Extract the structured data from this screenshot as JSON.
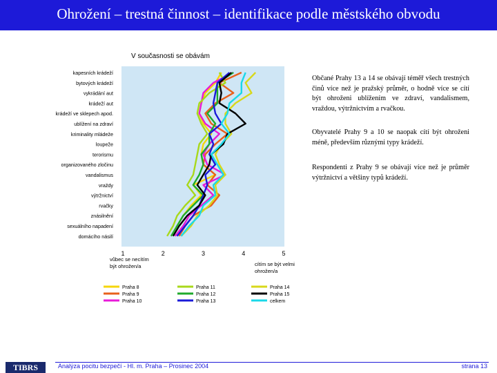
{
  "header": {
    "title": "Ohrožení – trestná činnost – identifikace podle městského obvodu"
  },
  "chart_data": {
    "type": "line",
    "orientation": "horizontal-profile",
    "title": "V současnosti se obávám",
    "categories": [
      "kapesních krádeží",
      "bytových krádeží",
      "vykrádání aut",
      "krádeží aut",
      "krádeží ve sklepech apod.",
      "ublížení na zdraví",
      "kriminality mládeže",
      "loupeže",
      "terorismu",
      "organizovaného zločinu",
      "vandalismus",
      "vraždy",
      "výtržnictví",
      "rvačky",
      "znásilnění",
      "sexuálního napadení",
      "domácího násilí"
    ],
    "x_ticks": [
      "1",
      "2",
      "3",
      "4",
      "5"
    ],
    "xlim": [
      1,
      5
    ],
    "x_min_label": "vůbec se necítím být ohrožen/a",
    "x_max_label": "cítím se být velmi ohrožen/a",
    "grid": false,
    "legend_position": "bottom",
    "series": [
      {
        "name": "Praha 8",
        "color": "#f5d60a",
        "values": [
          3.45,
          3.3,
          3.05,
          2.95,
          2.9,
          3.0,
          3.2,
          3.0,
          2.95,
          3.0,
          3.3,
          2.75,
          2.95,
          2.7,
          2.5,
          2.35,
          2.2
        ]
      },
      {
        "name": "Praha 9",
        "color": "#e8601c",
        "values": [
          3.95,
          3.4,
          3.75,
          3.3,
          3.05,
          3.2,
          3.6,
          3.3,
          3.05,
          3.0,
          3.3,
          3.1,
          3.4,
          3.2,
          2.75,
          2.55,
          2.4
        ]
      },
      {
        "name": "Praha 10",
        "color": "#e81ad8",
        "values": [
          3.75,
          3.25,
          3.0,
          2.95,
          2.9,
          3.05,
          3.4,
          3.15,
          3.0,
          3.1,
          3.55,
          3.0,
          3.25,
          2.95,
          2.65,
          2.5,
          2.3
        ]
      },
      {
        "name": "Praha 11",
        "color": "#a8d81a",
        "values": [
          3.4,
          3.55,
          3.15,
          2.9,
          2.85,
          2.95,
          3.1,
          2.9,
          2.85,
          2.8,
          2.75,
          2.6,
          2.8,
          2.55,
          2.35,
          2.25,
          2.1
        ]
      },
      {
        "name": "Praha 12",
        "color": "#1faa2c",
        "values": [
          3.75,
          3.35,
          3.35,
          3.35,
          3.1,
          3.3,
          3.15,
          3.15,
          2.95,
          3.0,
          2.9,
          2.75,
          3.0,
          2.75,
          2.5,
          2.35,
          2.2
        ]
      },
      {
        "name": "Praha 13",
        "color": "#1a1ad8",
        "values": [
          3.65,
          3.35,
          3.3,
          3.25,
          3.3,
          3.45,
          3.15,
          3.25,
          3.15,
          3.3,
          3.05,
          3.1,
          3.0,
          2.9,
          2.75,
          2.55,
          2.35
        ]
      },
      {
        "name": "Praha 14",
        "color": "#d8d81a",
        "values": [
          4.3,
          4.05,
          4.2,
          3.8,
          3.55,
          3.55,
          3.7,
          3.45,
          3.3,
          3.4,
          3.55,
          3.3,
          3.35,
          3.15,
          2.85,
          2.7,
          2.45
        ]
      },
      {
        "name": "Praha 15",
        "color": "#000000",
        "values": [
          3.7,
          3.4,
          3.45,
          3.4,
          3.8,
          4.05,
          3.6,
          3.5,
          3.2,
          3.15,
          3.0,
          2.85,
          3.05,
          2.9,
          2.6,
          2.4,
          2.25
        ]
      },
      {
        "name": "celkem",
        "color": "#1ad8e8",
        "values": [
          4.05,
          3.95,
          3.95,
          3.65,
          3.6,
          3.45,
          3.65,
          3.45,
          3.2,
          3.35,
          3.5,
          3.25,
          3.3,
          3.0,
          2.9,
          2.65,
          2.45
        ]
      }
    ]
  },
  "paragraphs": [
    "Občané Prahy 13 a 14 se obávají téměř všech trestných činů více než je pražský průměr, o hodně více se cítí být ohroženi ublížením ve zdraví, vandalismem, vraždou, výtržnictvím a rvačkou.",
    "Obyvatelé Prahy 9 a 10 se naopak cítí být ohroženi méně, především různými typy krádeží.",
    "Respondenti z Prahy 9 se obávají více než je průměr výtržnictví a většiny typů krádeží."
  ],
  "footer": {
    "logo_text": "TIBRS",
    "text": "Analýza pocitu bezpečí - Hl. m. Praha – Prosinec 2004",
    "page": "strana 13"
  }
}
